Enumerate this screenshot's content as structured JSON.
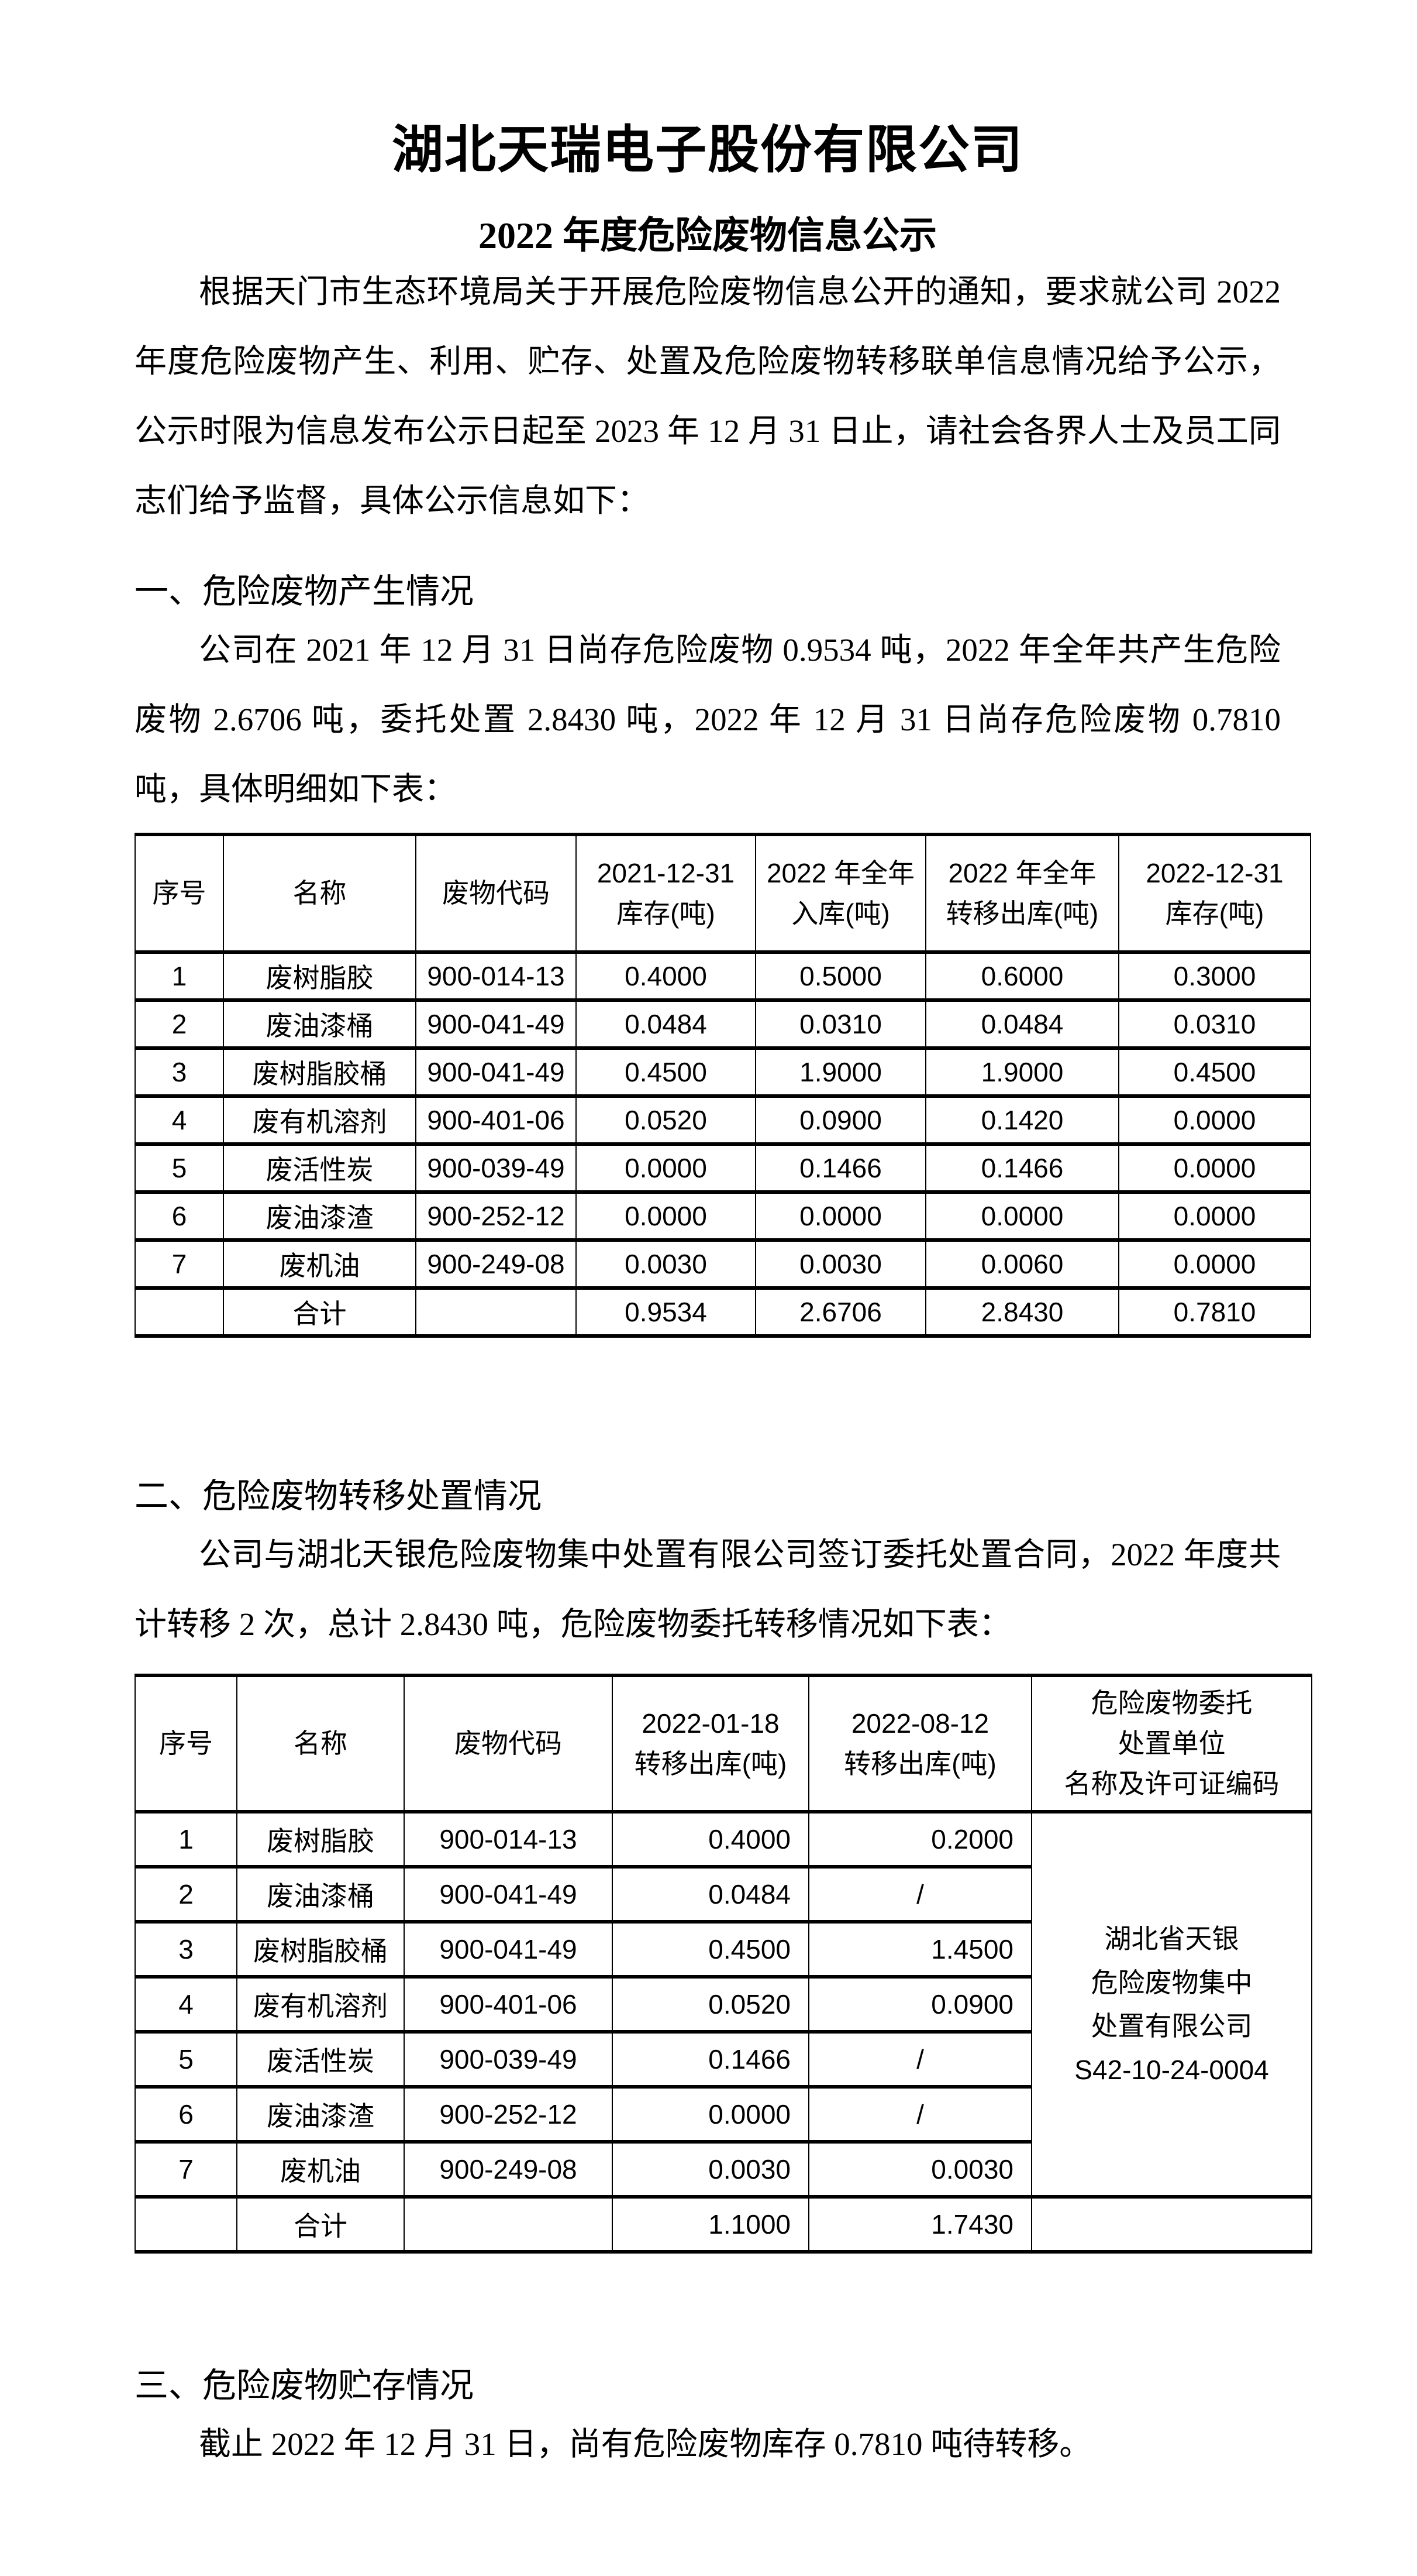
{
  "doc": {
    "title": "湖北天瑞电子股份有限公司",
    "subtitle": "2022 年度危险废物信息公示",
    "intro": "根据天门市生态环境局关于开展危险废物信息公开的通知，要求就公司 2022 年度危险废物产生、利用、贮存、处置及危险废物转移联单信息情况给予公示，公示时限为信息发布公示日起至 2023 年 12 月 31 日止，请社会各界人士及员工同志们给予监督，具体公示信息如下：",
    "section1": {
      "heading": "一、危险废物产生情况",
      "para": "公司在 2021 年 12 月 31 日尚存危险废物 0.9534 吨，2022 年全年共产生危险废物 2.6706 吨，委托处置 2.8430 吨，2022 年 12 月 31 日尚存危险废物 0.7810 吨，具体明细如下表："
    },
    "section2": {
      "heading": "二、危险废物转移处置情况",
      "para": "公司与湖北天银危险废物集中处置有限公司签订委托处置合同，2022 年度共计转移 2 次，总计 2.8430 吨，危险废物委托转移情况如下表："
    },
    "section3": {
      "heading": "三、危险废物贮存情况",
      "para": "截止 2022 年 12 月 31 日，尚有危险废物库存 0.7810 吨待转移。"
    }
  },
  "table1": {
    "headers": [
      "序号",
      "名称",
      "废物代码",
      "2021-12-31\n库存(吨)",
      "2022 年全年\n入库(吨)",
      "2022 年全年\n转移出库(吨)",
      "2022-12-31\n库存(吨)"
    ],
    "rows": [
      [
        "1",
        "废树脂胶",
        "900-014-13",
        "0.4000",
        "0.5000",
        "0.6000",
        "0.3000"
      ],
      [
        "2",
        "废油漆桶",
        "900-041-49",
        "0.0484",
        "0.0310",
        "0.0484",
        "0.0310"
      ],
      [
        "3",
        "废树脂胶桶",
        "900-041-49",
        "0.4500",
        "1.9000",
        "1.9000",
        "0.4500"
      ],
      [
        "4",
        "废有机溶剂",
        "900-401-06",
        "0.0520",
        "0.0900",
        "0.1420",
        "0.0000"
      ],
      [
        "5",
        "废活性炭",
        "900-039-49",
        "0.0000",
        "0.1466",
        "0.1466",
        "0.0000"
      ],
      [
        "6",
        "废油漆渣",
        "900-252-12",
        "0.0000",
        "0.0000",
        "0.0000",
        "0.0000"
      ],
      [
        "7",
        "废机油",
        "900-249-08",
        "0.0030",
        "0.0030",
        "0.0060",
        "0.0000"
      ]
    ],
    "total_row": [
      "",
      "合计",
      "",
      "0.9534",
      "2.6706",
      "2.8430",
      "0.7810"
    ]
  },
  "table2": {
    "headers": [
      "序号",
      "名称",
      "废物代码",
      "2022-01-18\n转移出库(吨)",
      "2022-08-12\n转移出库(吨)",
      "危险废物委托\n处置单位\n名称及许可证编码"
    ],
    "rows": [
      [
        "1",
        "废树脂胶",
        "900-014-13",
        "0.4000",
        "0.2000"
      ],
      [
        "2",
        "废油漆桶",
        "900-041-49",
        "0.0484",
        "/"
      ],
      [
        "3",
        "废树脂胶桶",
        "900-041-49",
        "0.4500",
        "1.4500"
      ],
      [
        "4",
        "废有机溶剂",
        "900-401-06",
        "0.0520",
        "0.0900"
      ],
      [
        "5",
        "废活性炭",
        "900-039-49",
        "0.1466",
        "/"
      ],
      [
        "6",
        "废油漆渣",
        "900-252-12",
        "0.0000",
        "/"
      ],
      [
        "7",
        "废机油",
        "900-249-08",
        "0.0030",
        "0.0030"
      ]
    ],
    "total_row": [
      "",
      "合计",
      "",
      "1.1000",
      "1.7430",
      ""
    ],
    "disposal_company": "湖北省天银\n危险废物集中\n处置有限公司\nS42-10-24-0004"
  }
}
